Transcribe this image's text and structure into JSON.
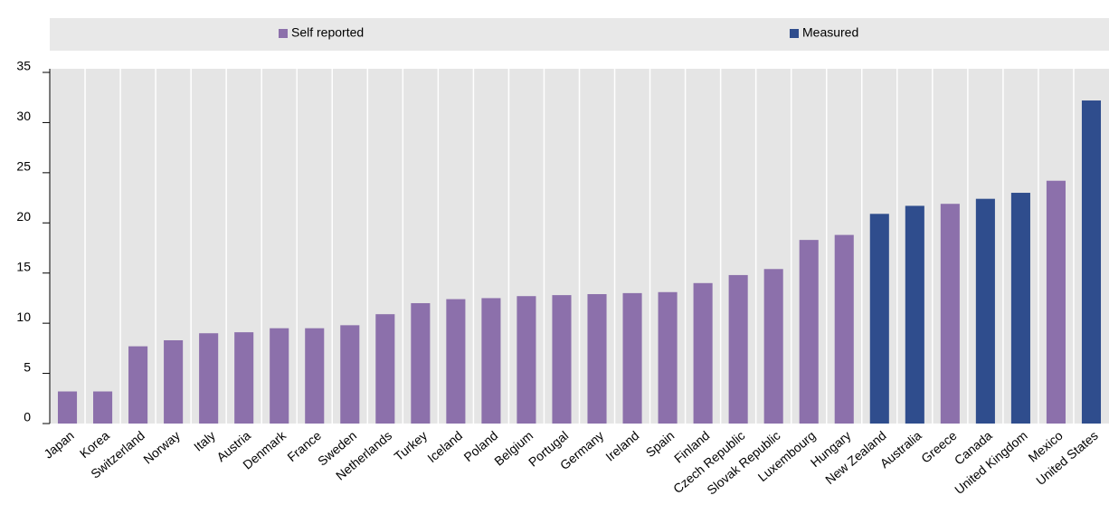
{
  "chart_data": {
    "type": "bar",
    "categories": [
      "Japan",
      "Korea",
      "Switzerland",
      "Norway",
      "Italy",
      "Austria",
      "Denmark",
      "France",
      "Sweden",
      "Netherlands",
      "Turkey",
      "Iceland",
      "Poland",
      "Belgium",
      "Portugal",
      "Germany",
      "Ireland",
      "Spain",
      "Finland",
      "Czech Republic",
      "Slovak Republic",
      "Luxembourg",
      "Hungary",
      "New Zealand",
      "Australia",
      "Greece",
      "Canada",
      "United Kingdom",
      "Mexico",
      "United States"
    ],
    "series": [
      {
        "name": "Self reported",
        "color": "#8c70ab",
        "values": [
          3.2,
          3.2,
          7.7,
          8.3,
          9.0,
          9.1,
          9.5,
          9.5,
          9.8,
          10.9,
          12.0,
          12.4,
          12.5,
          12.7,
          12.8,
          12.9,
          13.0,
          13.1,
          14.0,
          14.8,
          15.4,
          18.3,
          18.8,
          null,
          null,
          21.9,
          null,
          null,
          24.2,
          null
        ]
      },
      {
        "name": "Measured",
        "color": "#2f4d8d",
        "values": [
          null,
          null,
          null,
          null,
          null,
          null,
          null,
          null,
          null,
          null,
          null,
          null,
          null,
          null,
          null,
          null,
          null,
          null,
          null,
          null,
          null,
          null,
          null,
          20.9,
          21.7,
          null,
          22.4,
          23.0,
          null,
          32.2
        ]
      }
    ],
    "ylim": [
      0,
      35
    ],
    "yticks": [
      0,
      5,
      10,
      15,
      20,
      25,
      30,
      35
    ]
  }
}
